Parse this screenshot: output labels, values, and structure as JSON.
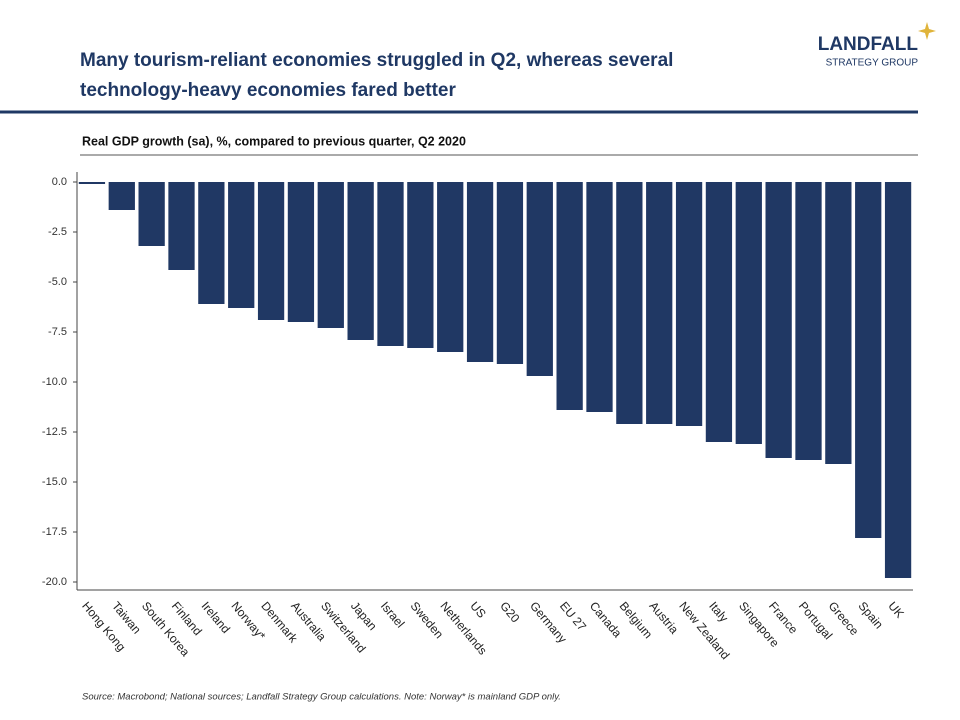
{
  "header": {
    "title_lines": [
      "Many tourism-reliant economies struggled in Q2, whereas several",
      "technology-heavy economies fared better"
    ]
  },
  "logo": {
    "name": "LANDFALL",
    "tagline": "STRATEGY GROUP"
  },
  "chart_data": {
    "type": "bar",
    "subtitle": "Real GDP growth (sa), %, compared to previous quarter, Q2 2020",
    "categories": [
      "Hong Kong",
      "Taiwan",
      "South Korea",
      "Finland",
      "Ireland",
      "Norway*",
      "Denmark",
      "Australia",
      "Switzerland",
      "Japan",
      "Israel",
      "Sweden",
      "Netherlands",
      "US",
      "G20",
      "Germany",
      "EU 27",
      "Canada",
      "Belgium",
      "Austria",
      "New Zealand",
      "Italy",
      "Singapore",
      "France",
      "Portugal",
      "Greece",
      "Spain",
      "UK"
    ],
    "values": [
      -0.1,
      -1.4,
      -3.2,
      -4.4,
      -6.1,
      -6.3,
      -6.9,
      -7.0,
      -7.3,
      -7.9,
      -8.2,
      -8.3,
      -8.5,
      -9.0,
      -9.1,
      -9.7,
      -11.4,
      -11.5,
      -12.1,
      -12.1,
      -12.2,
      -13.0,
      -13.1,
      -13.8,
      -13.9,
      -14.1,
      -17.8,
      -19.8
    ],
    "color": "#203864",
    "ylim": [
      -20.4,
      0.5
    ],
    "yticks": [
      {
        "value": 0,
        "label": "0.0"
      },
      {
        "value": -2.5,
        "label": "-2.5"
      },
      {
        "value": -5,
        "label": "-5.0"
      },
      {
        "value": -7.5,
        "label": "-7.5"
      },
      {
        "value": -10,
        "label": "-10.0"
      },
      {
        "value": -12.5,
        "label": "-12.5"
      },
      {
        "value": -15,
        "label": "-15.0"
      },
      {
        "value": -17.5,
        "label": "-17.5"
      },
      {
        "value": -20,
        "label": "-20.0"
      }
    ],
    "source": "Source: Macrobond;  National sources; Landfall Strategy Group calculations. Note: Norway* is mainland GDP only."
  }
}
